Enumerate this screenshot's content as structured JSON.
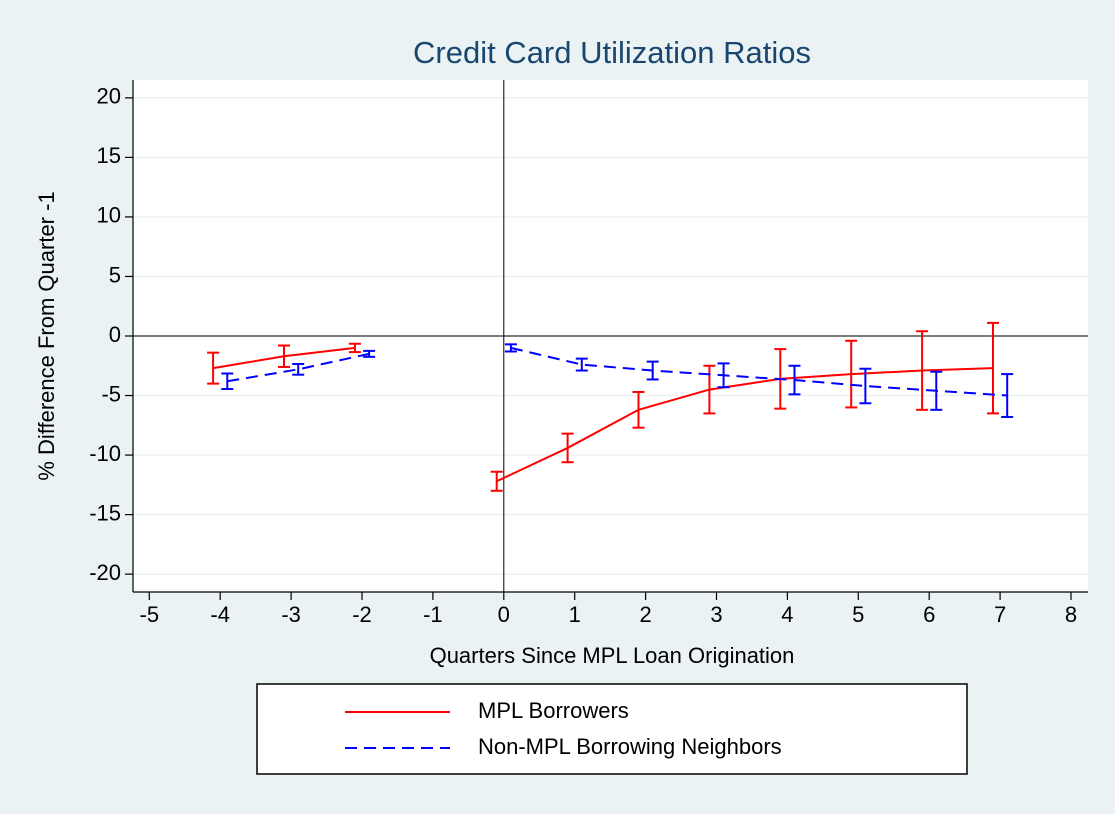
{
  "chart_data": {
    "type": "line",
    "title": "Credit Card Utilization Ratios",
    "xlabel": "Quarters Since MPL Loan Origination",
    "ylabel": "% Difference From Quarter -1",
    "xlim": [
      -5.23,
      8.24
    ],
    "ylim": [
      -21.5,
      21.5
    ],
    "xticks": [
      -5,
      -4,
      -3,
      -2,
      -1,
      0,
      1,
      2,
      3,
      4,
      5,
      6,
      7,
      8
    ],
    "yticks": [
      20,
      15,
      10,
      5,
      0,
      -5,
      -10,
      -15,
      -20
    ],
    "grid": true,
    "reference_lines": {
      "x": 0,
      "y": 0
    },
    "legend": "bottom",
    "series": [
      {
        "name": "MPL Borrowers",
        "color": "#ff0000",
        "dash": "solid",
        "x": [
          -4.1,
          -3.1,
          -2.1,
          null,
          -0.1,
          0.9,
          1.9,
          2.9,
          3.9,
          4.9,
          5.9,
          6.9
        ],
        "values": [
          -2.7,
          -1.7,
          -1.0,
          null,
          -12.2,
          -9.4,
          -6.2,
          -4.5,
          -3.6,
          -3.2,
          -2.9,
          -2.7
        ],
        "errors": [
          1.3,
          0.9,
          0.35,
          null,
          0.8,
          1.2,
          1.5,
          2.0,
          2.5,
          2.8,
          3.3,
          3.8
        ]
      },
      {
        "name": "Non-MPL Borrowing Neighbors",
        "color": "#0000ff",
        "dash": "dashed",
        "x": [
          -3.9,
          -2.9,
          -1.9,
          null,
          0.1,
          1.1,
          2.1,
          3.1,
          4.1,
          5.1,
          6.1,
          7.1
        ],
        "values": [
          -3.8,
          -2.8,
          -1.5,
          null,
          -1.0,
          -2.4,
          -2.9,
          -3.3,
          -3.7,
          -4.2,
          -4.6,
          -5.0
        ],
        "errors": [
          0.65,
          0.45,
          0.25,
          null,
          0.3,
          0.5,
          0.75,
          1.0,
          1.2,
          1.45,
          1.6,
          1.8
        ]
      }
    ]
  }
}
